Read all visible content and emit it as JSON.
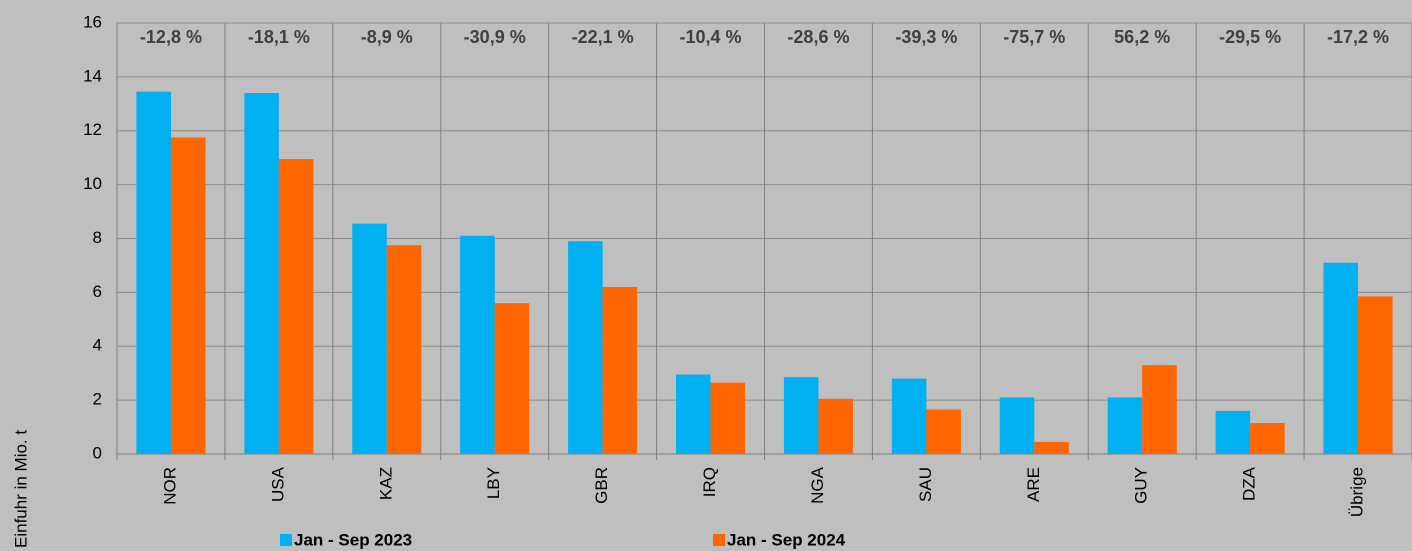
{
  "chart_data": {
    "type": "bar",
    "y_label": "Einfuhr in Mio. t",
    "categories": [
      "NOR",
      "USA",
      "KAZ",
      "LBY",
      "GBR",
      "IRQ",
      "NGA",
      "SAU",
      "ARE",
      "GUY",
      "DZA",
      "Übrige"
    ],
    "change_labels": [
      "-12,8 %",
      "-18,1 %",
      "-8,9 %",
      "-30,9 %",
      "-22,1 %",
      "-10,4 %",
      "-28,6 %",
      "-39,3 %",
      "-75,7 %",
      "56,2 %",
      "-29,5 %",
      "-17,2 %"
    ],
    "series": [
      {
        "name": "Jan - Sep 2023",
        "color": "#00b0f0",
        "values": [
          13.45,
          13.4,
          8.55,
          8.1,
          7.9,
          2.95,
          2.85,
          2.8,
          2.1,
          2.1,
          1.6,
          7.1
        ]
      },
      {
        "name": "Jan - Sep 2024",
        "color": "#ff6600",
        "values": [
          11.75,
          10.95,
          7.75,
          5.6,
          6.2,
          2.65,
          2.05,
          1.65,
          0.45,
          3.3,
          1.15,
          5.85
        ]
      }
    ],
    "ylim": [
      0,
      16
    ],
    "yticks": [
      0,
      2,
      4,
      6,
      8,
      10,
      12,
      14,
      16
    ],
    "grid": true
  }
}
